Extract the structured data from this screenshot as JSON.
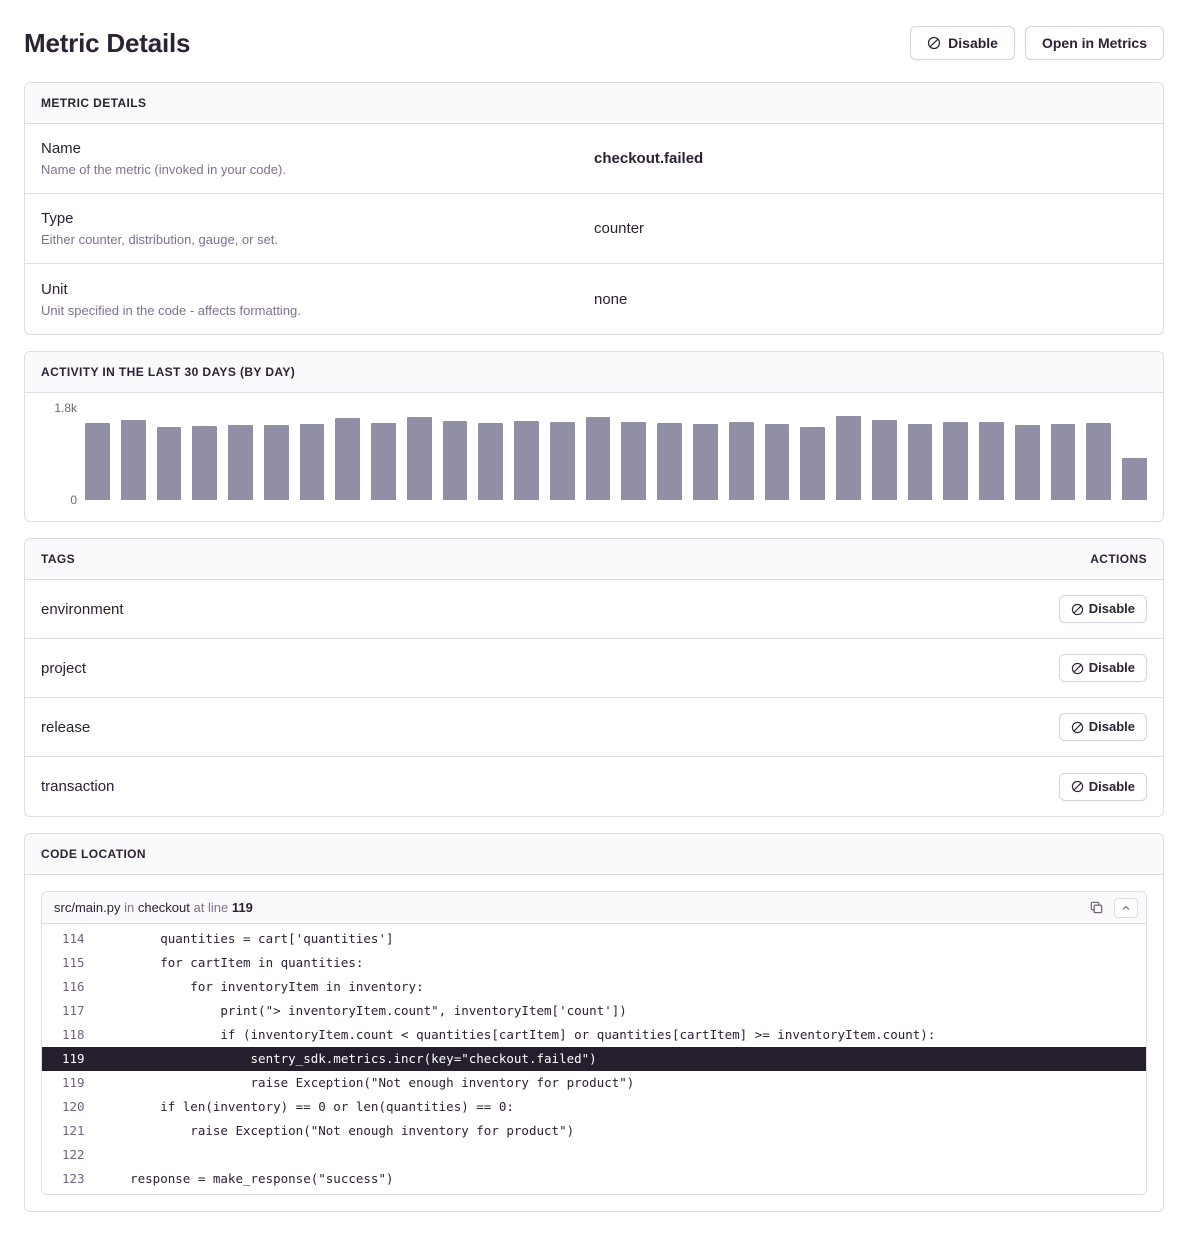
{
  "page": {
    "title": "Metric Details"
  },
  "header": {
    "disable_label": "Disable",
    "open_in_metrics_label": "Open in Metrics"
  },
  "details": {
    "title": "METRIC DETAILS",
    "rows": [
      {
        "label": "Name",
        "description": "Name of the metric (invoked in your code).",
        "value": "checkout.failed"
      },
      {
        "label": "Type",
        "description": "Either counter, distribution, gauge, or set.",
        "value": "counter"
      },
      {
        "label": "Unit",
        "description": "Unit specified in the code - affects formatting.",
        "value": "none"
      }
    ]
  },
  "activity": {
    "title": "ACTIVITY IN THE LAST 30 DAYS (BY DAY)",
    "y_max_label": "1.8k",
    "y_min_label": "0"
  },
  "chart_data": {
    "type": "bar",
    "title": "Activity in the last 30 days (by day)",
    "xlabel": "",
    "ylabel": "",
    "ylim": [
      0,
      1800
    ],
    "y_tick_labels": [
      "0",
      "1.8k"
    ],
    "grid": false,
    "legend": false,
    "bar_color": "#918fa6",
    "values": [
      1500,
      1560,
      1420,
      1440,
      1460,
      1460,
      1480,
      1600,
      1500,
      1620,
      1540,
      1500,
      1540,
      1520,
      1620,
      1520,
      1500,
      1480,
      1520,
      1480,
      1420,
      1640,
      1560,
      1480,
      1520,
      1520,
      1460,
      1480,
      1500,
      820
    ]
  },
  "tags": {
    "title": "TAGS",
    "actions_label": "ACTIONS",
    "disable_label": "Disable",
    "items": [
      "environment",
      "project",
      "release",
      "transaction"
    ]
  },
  "code_location": {
    "title": "CODE LOCATION",
    "file": "src/main.py",
    "in_label": "in",
    "function": "checkout",
    "at_line_label": "at line",
    "line_number": "119",
    "lines": [
      {
        "num": "114",
        "code": "        quantities = cart['quantities']",
        "highlight": false
      },
      {
        "num": "115",
        "code": "        for cartItem in quantities:",
        "highlight": false
      },
      {
        "num": "116",
        "code": "            for inventoryItem in inventory:",
        "highlight": false
      },
      {
        "num": "117",
        "code": "                print(\"> inventoryItem.count\", inventoryItem['count'])",
        "highlight": false
      },
      {
        "num": "118",
        "code": "                if (inventoryItem.count < quantities[cartItem] or quantities[cartItem] >= inventoryItem.count):",
        "highlight": false
      },
      {
        "num": "119",
        "code": "                    sentry_sdk.metrics.incr(key=\"checkout.failed\")",
        "highlight": true
      },
      {
        "num": "119",
        "code": "                    raise Exception(\"Not enough inventory for product\")",
        "highlight": false
      },
      {
        "num": "120",
        "code": "        if len(inventory) == 0 or len(quantities) == 0:",
        "highlight": false
      },
      {
        "num": "121",
        "code": "            raise Exception(\"Not enough inventory for product\")",
        "highlight": false
      },
      {
        "num": "122",
        "code": "",
        "highlight": false
      },
      {
        "num": "123",
        "code": "    response = make_response(\"success\")",
        "highlight": false
      }
    ]
  },
  "colors": {
    "text": "#2b2233",
    "muted_text": "#80708f",
    "border": "#e0dce5",
    "panel_header_bg": "#faf9fb",
    "bar": "#918fa6",
    "highlight_row_bg": "#251f2d"
  }
}
